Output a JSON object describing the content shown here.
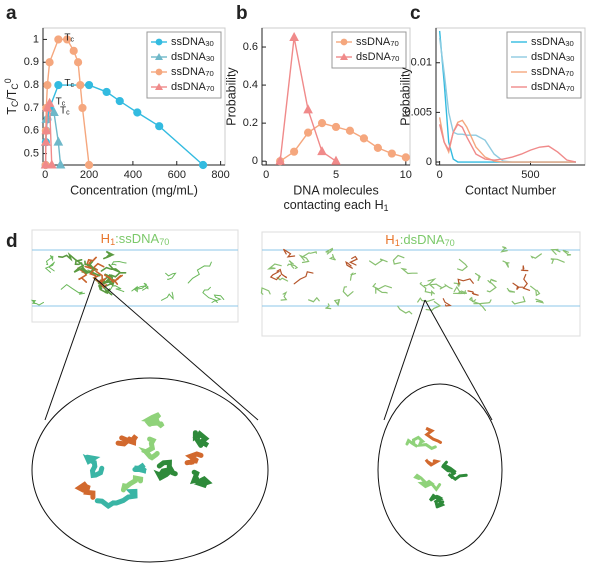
{
  "panel_labels": [
    "a",
    "b",
    "c",
    "d"
  ],
  "chart_data": [
    {
      "type": "line",
      "xlabel": "Concentration (mg/mL)",
      "ylabel": "TC/TC0",
      "xlim": [
        -10,
        820
      ],
      "xticks": [
        0,
        200,
        400,
        600,
        800
      ],
      "ylim": [
        0.45,
        1.05
      ],
      "yticks": [
        0.5,
        0.6,
        0.7,
        0.8,
        0.9,
        1
      ],
      "legend": "upper right",
      "series": [
        {
          "name": "ssDNA30",
          "color": "#33bbe0",
          "marker": "circle",
          "x": [
            2,
            3,
            5,
            10,
            20,
            60,
            200,
            280,
            340,
            420,
            520,
            720
          ],
          "values": [
            0.45,
            0.55,
            0.6,
            0.65,
            0.7,
            0.8,
            0.8,
            0.77,
            0.73,
            0.68,
            0.62,
            0.45
          ]
        },
        {
          "name": "dsDNA30",
          "color": "#6fb8c9",
          "marker": "triangle",
          "x": [
            2,
            3,
            5,
            40,
            60,
            70
          ],
          "values": [
            0.45,
            0.55,
            0.65,
            0.68,
            0.55,
            0.45
          ]
        },
        {
          "name": "ssDNA70",
          "color": "#f5a77e",
          "marker": "circle",
          "x": [
            2,
            3,
            5,
            10,
            20,
            60,
            100,
            130,
            150,
            160,
            170,
            200
          ],
          "values": [
            0.45,
            0.6,
            0.7,
            0.8,
            0.9,
            1,
            1,
            0.95,
            0.9,
            0.8,
            0.7,
            0.45
          ]
        },
        {
          "name": "dsDNA70",
          "color": "#f08a8a",
          "marker": "triangle",
          "x": [
            2,
            3,
            5,
            10,
            20,
            30
          ],
          "values": [
            0.45,
            0.55,
            0.6,
            0.7,
            0.72,
            0.45
          ]
        }
      ],
      "annotations": [
        {
          "text": "Tc",
          "series": 2
        },
        {
          "text": "Tc",
          "series": 0
        },
        {
          "text": "Tc",
          "series": 3
        },
        {
          "text": "Tc",
          "series": 1
        }
      ]
    },
    {
      "type": "line",
      "xlabel": [
        "DNA molecules",
        "contacting each H1"
      ],
      "ylabel": "Probability",
      "xlim": [
        -0.3,
        10.3
      ],
      "xticks": [
        0,
        5,
        10
      ],
      "ylim": [
        -0.02,
        0.7
      ],
      "yticks": [
        0,
        0.2,
        0.4,
        0.6
      ],
      "legend": "upper right",
      "series": [
        {
          "name": "ssDNA70",
          "color": "#f5a77e",
          "marker": "circle",
          "x": [
            1,
            2,
            3,
            4,
            5,
            6,
            7,
            8,
            9,
            10
          ],
          "values": [
            0,
            0.05,
            0.15,
            0.2,
            0.18,
            0.16,
            0.12,
            0.07,
            0.04,
            0.02
          ]
        },
        {
          "name": "dsDNA70",
          "color": "#f08a8a",
          "marker": "triangle",
          "x": [
            1,
            2,
            3,
            4,
            5
          ],
          "values": [
            0,
            0.65,
            0.27,
            0.05,
            0
          ]
        }
      ]
    },
    {
      "type": "line",
      "xlabel": "Contact Number",
      "ylabel": "Probability",
      "xlim": [
        -20,
        800
      ],
      "xticks": [
        0,
        500
      ],
      "ylim": [
        -0.0003,
        0.0135
      ],
      "yticks": [
        0,
        0.005,
        0.01
      ],
      "legend": "upper right",
      "x": [
        0,
        25,
        50,
        75,
        100,
        125,
        150,
        200,
        250,
        300,
        350,
        400,
        450,
        500,
        550,
        600,
        650,
        700,
        750
      ],
      "series": [
        {
          "name": "ssDNA30",
          "color": "#33bbe0",
          "values": [
            0.0132,
            0.008,
            0.002,
            0.0003,
            0,
            0,
            0,
            0,
            0,
            0,
            0,
            0,
            0,
            0,
            0,
            0,
            0,
            0,
            0
          ]
        },
        {
          "name": "dsDNA30",
          "color": "#8fcbe0",
          "values": [
            0.0125,
            0.009,
            0.005,
            0.003,
            0.0028,
            0.0028,
            0.0027,
            0.0027,
            0.0022,
            0.0008,
            0.0001,
            0,
            0,
            0,
            0,
            0,
            0,
            0,
            0
          ]
        },
        {
          "name": "ssDNA70",
          "color": "#f5a77e",
          "values": [
            0.0045,
            0.002,
            0.001,
            0.003,
            0.004,
            0.0042,
            0.0035,
            0.0015,
            0.0005,
            0.0001,
            0,
            0,
            0,
            0,
            0,
            0,
            0,
            0,
            0
          ]
        },
        {
          "name": "dsDNA70",
          "color": "#f08a8a",
          "values": [
            0.0038,
            0.002,
            0.0012,
            0.003,
            0.0038,
            0.0035,
            0.0025,
            0.0008,
            0.0003,
            0.0002,
            0.0003,
            0.0005,
            0.0008,
            0.0012,
            0.0015,
            0.0016,
            0.001,
            0.0002,
            0
          ]
        }
      ]
    }
  ],
  "panel_d": {
    "left": [
      "H1",
      ":ssDNA70"
    ],
    "right": [
      "H1",
      ":dsDNA70"
    ]
  }
}
